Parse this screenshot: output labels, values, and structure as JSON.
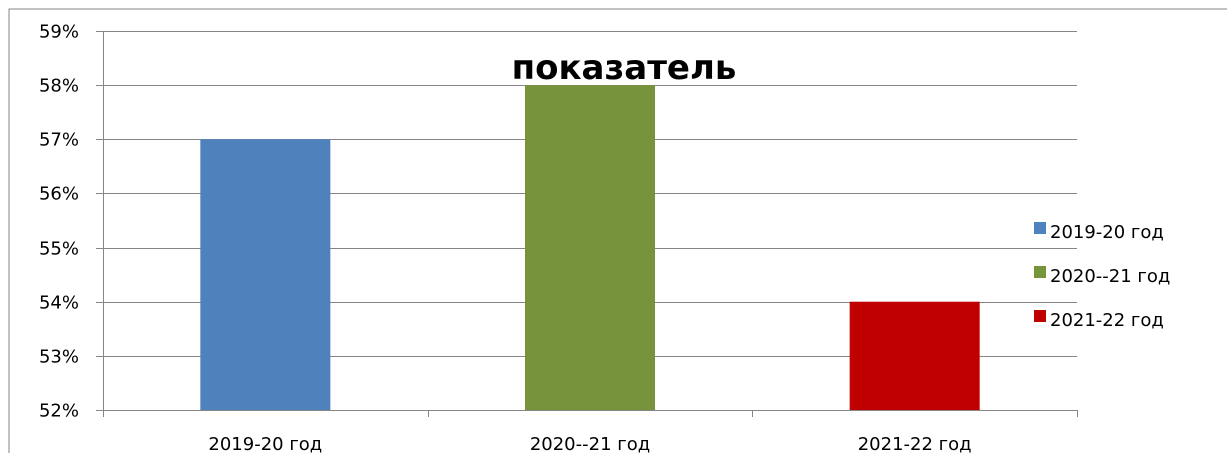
{
  "chart_data": {
    "type": "bar",
    "title": "показатель",
    "categories": [
      "2019-20 год",
      "2020--21 год",
      "2021-22 год"
    ],
    "values": [
      0.57,
      0.58,
      0.54
    ],
    "colors": [
      "#4F81BD",
      "#77933C",
      "#C00000"
    ],
    "ylim": [
      0.52,
      0.59
    ],
    "yticks": [
      "52%",
      "53%",
      "54%",
      "55%",
      "56%",
      "57%",
      "58%",
      "59%"
    ],
    "ytick_values": [
      0.52,
      0.53,
      0.54,
      0.55,
      0.56,
      0.57,
      0.58,
      0.59
    ],
    "grid": true,
    "legend_position": "right",
    "legend": [
      "2019-20 год",
      "2020--21 год",
      "2021-22 год"
    ]
  }
}
